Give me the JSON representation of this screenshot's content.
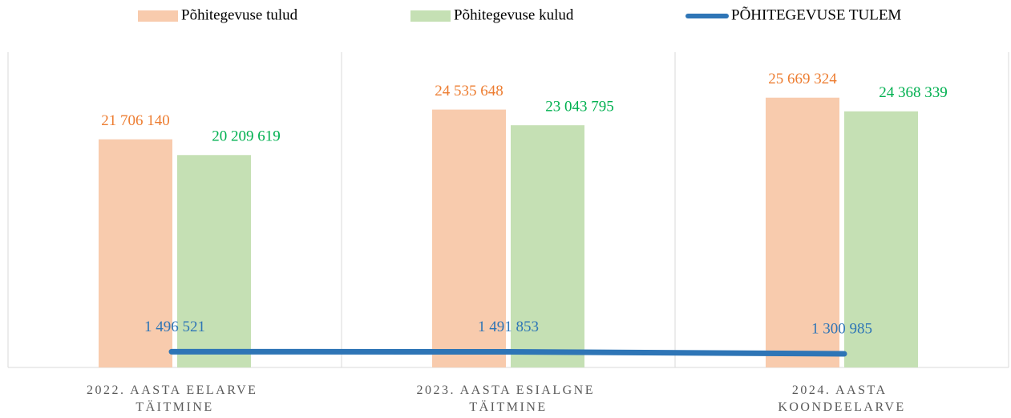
{
  "chart_data": {
    "type": "bar",
    "categories": [
      "2022. AASTA EELARVE TÄITMINE",
      "2023. AASTA ESIALGNE TÄITMINE",
      "2024. AASTA  KOONDEELARVE"
    ],
    "series": [
      {
        "name": "Põhitegevuse tulud",
        "color": "#f8cbad",
        "label_color": "#ed7d31",
        "values": [
          21706140,
          24535648,
          25669324
        ],
        "value_labels": [
          "21 706 140",
          "24 535 648",
          "25 669 324"
        ]
      },
      {
        "name": "Põhitegevuse kulud",
        "color": "#c5e0b4",
        "label_color": "#00b050",
        "values": [
          20209619,
          23043795,
          24368339
        ],
        "value_labels": [
          "20 209 619",
          "23 043 795",
          "24 368 339"
        ]
      },
      {
        "name": "PÕHITEGEVUSE TULEM",
        "type": "line",
        "color": "#2e75b6",
        "label_color": "#2e75b6",
        "values": [
          1496521,
          1491853,
          1300985
        ],
        "value_labels": [
          "1 496 521",
          "1 491 853",
          "1 300 985"
        ]
      }
    ],
    "ylim": [
      0,
      30000000
    ],
    "legend": "top"
  }
}
